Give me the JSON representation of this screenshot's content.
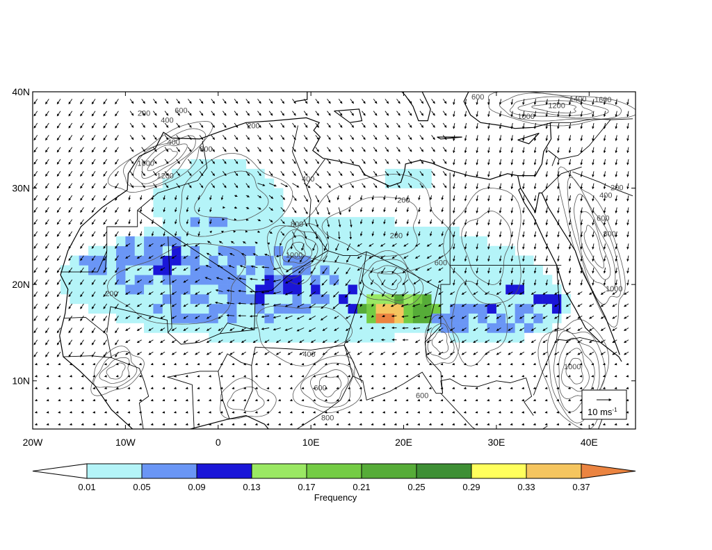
{
  "map": {
    "region": {
      "lon_min": -20,
      "lon_max": 45,
      "lat_min": 5,
      "lat_max": 40
    },
    "x_ticks": [
      {
        "value": -20,
        "label": "20W"
      },
      {
        "value": -10,
        "label": "10W"
      },
      {
        "value": 0,
        "label": "0"
      },
      {
        "value": 10,
        "label": "10E"
      },
      {
        "value": 20,
        "label": "20E"
      },
      {
        "value": 30,
        "label": "30E"
      },
      {
        "value": 40,
        "label": "40E"
      }
    ],
    "y_ticks": [
      {
        "value": 10,
        "label": "10N"
      },
      {
        "value": 20,
        "label": "20N"
      },
      {
        "value": 30,
        "label": "30N"
      },
      {
        "value": 40,
        "label": "40N"
      }
    ],
    "contour_labels": [
      {
        "text": "200",
        "lon": -8.0,
        "lat": 37.5
      },
      {
        "text": "400",
        "lon": -5.5,
        "lat": 36.8
      },
      {
        "text": "600",
        "lon": -4.0,
        "lat": 37.8
      },
      {
        "text": "400",
        "lon": -4.8,
        "lat": 34.5
      },
      {
        "text": "800",
        "lon": -1.3,
        "lat": 33.8
      },
      {
        "text": "1000",
        "lon": -7.8,
        "lat": 32.3
      },
      {
        "text": "1200",
        "lon": -5.7,
        "lat": 31.0
      },
      {
        "text": "200",
        "lon": 3.8,
        "lat": 36.2
      },
      {
        "text": "400",
        "lon": 9.7,
        "lat": 30.7
      },
      {
        "text": "800",
        "lon": 8.5,
        "lat": 26.0
      },
      {
        "text": "1000",
        "lon": 8.2,
        "lat": 22.8
      },
      {
        "text": "200",
        "lon": 20.0,
        "lat": 28.5
      },
      {
        "text": "200",
        "lon": 19.2,
        "lat": 24.8
      },
      {
        "text": "600",
        "lon": 24.0,
        "lat": 22.0
      },
      {
        "text": "200",
        "lon": -11.5,
        "lat": 18.8
      },
      {
        "text": "400",
        "lon": 9.8,
        "lat": 12.5
      },
      {
        "text": "600",
        "lon": 11.0,
        "lat": 9.0
      },
      {
        "text": "800",
        "lon": 11.8,
        "lat": 5.9
      },
      {
        "text": "600",
        "lon": 22.0,
        "lat": 8.2
      },
      {
        "text": "600",
        "lon": 28.0,
        "lat": 39.2
      },
      {
        "text": "1200",
        "lon": 36.5,
        "lat": 38.3
      },
      {
        "text": "1400",
        "lon": 38.8,
        "lat": 39.0
      },
      {
        "text": "1600",
        "lon": 41.5,
        "lat": 38.9
      },
      {
        "text": "1000",
        "lon": 33.2,
        "lat": 37.2
      },
      {
        "text": "200",
        "lon": 43.0,
        "lat": 29.8
      },
      {
        "text": "400",
        "lon": 41.8,
        "lat": 29.0
      },
      {
        "text": "600",
        "lon": 41.5,
        "lat": 26.6
      },
      {
        "text": "800",
        "lon": 42.2,
        "lat": 25.0
      },
      {
        "text": "1000",
        "lon": 42.7,
        "lat": 19.3
      },
      {
        "text": "1000",
        "lon": 38.2,
        "lat": 11.2
      }
    ],
    "reference_vector": {
      "label": "10 ms",
      "superscript": "-1"
    }
  },
  "colorbar": {
    "title": "Frequency",
    "colors": [
      "#ffffff",
      "#b4f4f8",
      "#6a96f5",
      "#1a16d8",
      "#9ae863",
      "#74cc44",
      "#56ac38",
      "#3e8f35",
      "#ffff5c",
      "#f5c55f",
      "#eb8441"
    ],
    "labels": [
      "0.01",
      "0.05",
      "0.09",
      "0.13",
      "0.17",
      "0.21",
      "0.25",
      "0.29",
      "0.33",
      "0.37"
    ]
  }
}
